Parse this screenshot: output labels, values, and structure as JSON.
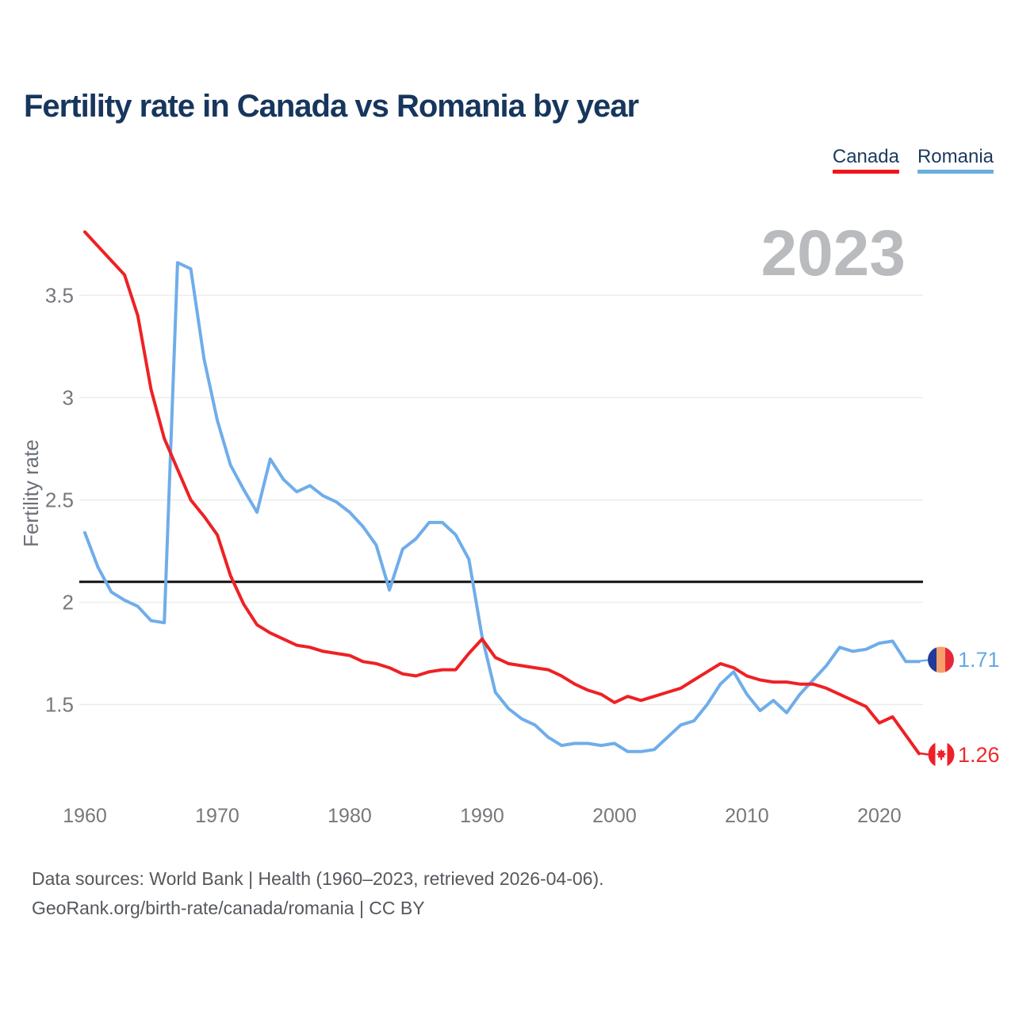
{
  "title": "Fertility rate in Canada vs Romania by year",
  "watermark_year": "2023",
  "legend": [
    {
      "label": "Canada",
      "color": "#f01519"
    },
    {
      "label": "Romania",
      "color": "#6aaede"
    }
  ],
  "y_axis": {
    "label": "Fertility rate",
    "ticks": [
      "1.5",
      "2",
      "2.5",
      "3",
      "3.5"
    ]
  },
  "x_axis": {
    "ticks": [
      "1960",
      "1970",
      "1980",
      "1990",
      "2000",
      "2010",
      "2020"
    ]
  },
  "reference_line": {
    "value": 2.1
  },
  "end_labels": [
    {
      "series": "Romania",
      "value": "1.71",
      "icon": "romania-flag",
      "color": "#64a9e8"
    },
    {
      "series": "Canada",
      "value": "1.26",
      "icon": "canada-flag",
      "color": "#ee2a2a"
    }
  ],
  "flag_colors": {
    "romania": {
      "left": "#23399c",
      "middle": "#f8a06b",
      "right": "#e62938"
    },
    "canada": {
      "band": "#ee2028",
      "center": "#ffffff",
      "leaf": "#ee2028"
    }
  },
  "footer": {
    "line1": "Data sources: World Bank | Health (1960–2023, retrieved 2026-04-06).",
    "line2": "GeoRank.org/birth-rate/canada/romania | CC BY"
  },
  "chart_data": {
    "type": "line",
    "title": "Fertility rate in Canada vs Romania by year",
    "ylabel": "Fertility rate",
    "xlim": [
      1960,
      2023
    ],
    "ylim": [
      1.1,
      3.9
    ],
    "yticks": [
      1.5,
      2,
      2.5,
      3,
      3.5
    ],
    "xticks": [
      1960,
      1970,
      1980,
      1990,
      2000,
      2010,
      2020
    ],
    "grid": "horizontal",
    "legend_position": "top-right",
    "replacement_rate_line": 2.1,
    "x_start": 1960,
    "x_step": 1,
    "series": [
      {
        "name": "Canada",
        "color": "#ee2124",
        "end_value": 1.26,
        "values": [
          3.81,
          3.74,
          3.67,
          3.6,
          3.4,
          3.04,
          2.8,
          2.65,
          2.5,
          2.42,
          2.33,
          2.13,
          1.99,
          1.89,
          1.85,
          1.82,
          1.79,
          1.78,
          1.76,
          1.75,
          1.74,
          1.71,
          1.7,
          1.68,
          1.65,
          1.64,
          1.66,
          1.67,
          1.67,
          1.75,
          1.82,
          1.73,
          1.7,
          1.69,
          1.68,
          1.67,
          1.64,
          1.6,
          1.57,
          1.55,
          1.51,
          1.54,
          1.52,
          1.54,
          1.56,
          1.58,
          1.62,
          1.66,
          1.7,
          1.68,
          1.64,
          1.62,
          1.61,
          1.61,
          1.6,
          1.6,
          1.58,
          1.55,
          1.52,
          1.49,
          1.41,
          1.44,
          1.35,
          1.26
        ]
      },
      {
        "name": "Romania",
        "color": "#6fadea",
        "end_value": 1.71,
        "values": [
          2.34,
          2.17,
          2.05,
          2.01,
          1.98,
          1.91,
          1.9,
          3.66,
          3.63,
          3.19,
          2.89,
          2.67,
          2.55,
          2.44,
          2.7,
          2.6,
          2.54,
          2.57,
          2.52,
          2.49,
          2.44,
          2.37,
          2.28,
          2.06,
          2.26,
          2.31,
          2.39,
          2.39,
          2.33,
          2.21,
          1.83,
          1.56,
          1.48,
          1.43,
          1.4,
          1.34,
          1.3,
          1.31,
          1.31,
          1.3,
          1.31,
          1.27,
          1.27,
          1.28,
          1.34,
          1.4,
          1.42,
          1.5,
          1.6,
          1.66,
          1.55,
          1.47,
          1.52,
          1.46,
          1.55,
          1.62,
          1.69,
          1.78,
          1.76,
          1.77,
          1.8,
          1.81,
          1.71,
          1.71
        ]
      }
    ]
  }
}
